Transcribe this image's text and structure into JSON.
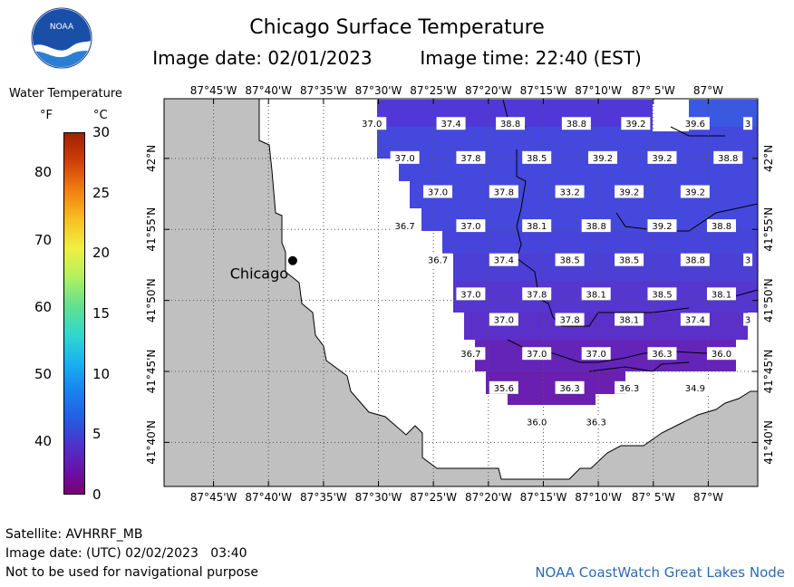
{
  "header": {
    "title": "Chicago Surface Temperature",
    "image_date": "Image date: 02/01/2023",
    "image_time": "Image time: 22:40 (EST)"
  },
  "logo": {
    "text": "NOAA",
    "icon": "noaa-logo-icon"
  },
  "legend": {
    "title": "Water Temperature",
    "unit_f": "°F",
    "unit_c": "°C",
    "f_ticks": [
      "80",
      "70",
      "60",
      "50",
      "40"
    ],
    "f_values": [
      80,
      70,
      60,
      50,
      40
    ],
    "c_ticks": [
      "30",
      "25",
      "20",
      "15",
      "10",
      "5",
      "0"
    ],
    "c_values": [
      30,
      25,
      20,
      15,
      10,
      5,
      0
    ],
    "c_range": [
      0,
      30
    ]
  },
  "map": {
    "lon_labels": [
      "87°45'W",
      "87°40'W",
      "87°35'W",
      "87°30'W",
      "87°25'W",
      "87°20'W",
      "87°15'W",
      "87°10'W",
      "87° 5'W",
      "87°W"
    ],
    "lon_values": [
      -87.75,
      -87.6667,
      -87.5833,
      -87.5,
      -87.4167,
      -87.3333,
      -87.25,
      -87.1667,
      -87.0833,
      -87.0
    ],
    "lat_labels": [
      "42°N",
      "41°55'N",
      "41°50'N",
      "41°45'N",
      "41°40'N"
    ],
    "lat_values": [
      42.0,
      41.9167,
      41.8333,
      41.75,
      41.6667
    ],
    "city": "Chicago",
    "city_lon": -87.63,
    "city_lat": 41.88,
    "temperature_labels": [
      {
        "t": "37.0",
        "lon": -87.51,
        "lat": 42.04
      },
      {
        "t": "37.4",
        "lon": -87.39,
        "lat": 42.04
      },
      {
        "t": "38.8",
        "lon": -87.3,
        "lat": 42.04
      },
      {
        "t": "38.8",
        "lon": -87.2,
        "lat": 42.04
      },
      {
        "t": "39.2",
        "lon": -87.11,
        "lat": 42.04
      },
      {
        "t": "39.6",
        "lon": -87.02,
        "lat": 42.04
      },
      {
        "t": "3",
        "lon": -86.94,
        "lat": 42.04
      },
      {
        "t": "37.0",
        "lon": -87.46,
        "lat": 42.0
      },
      {
        "t": "37.8",
        "lon": -87.36,
        "lat": 42.0
      },
      {
        "t": "38.5",
        "lon": -87.26,
        "lat": 42.0
      },
      {
        "t": "39.2",
        "lon": -87.16,
        "lat": 42.0
      },
      {
        "t": "39.2",
        "lon": -87.07,
        "lat": 42.0
      },
      {
        "t": "38.8",
        "lon": -86.97,
        "lat": 42.0
      },
      {
        "t": "37.0",
        "lon": -87.41,
        "lat": 41.96
      },
      {
        "t": "37.8",
        "lon": -87.31,
        "lat": 41.96
      },
      {
        "t": "33.2",
        "lon": -87.21,
        "lat": 41.96
      },
      {
        "t": "39.2",
        "lon": -87.12,
        "lat": 41.96
      },
      {
        "t": "39.2",
        "lon": -87.02,
        "lat": 41.96
      },
      {
        "t": "36.7",
        "lon": -87.46,
        "lat": 41.92
      },
      {
        "t": "37.0",
        "lon": -87.36,
        "lat": 41.92
      },
      {
        "t": "38.1",
        "lon": -87.26,
        "lat": 41.92
      },
      {
        "t": "38.8",
        "lon": -87.17,
        "lat": 41.92
      },
      {
        "t": "39.2",
        "lon": -87.07,
        "lat": 41.92
      },
      {
        "t": "38.8",
        "lon": -86.98,
        "lat": 41.92
      },
      {
        "t": "36.7",
        "lon": -87.41,
        "lat": 41.88
      },
      {
        "t": "37.4",
        "lon": -87.31,
        "lat": 41.88
      },
      {
        "t": "38.5",
        "lon": -87.21,
        "lat": 41.88
      },
      {
        "t": "38.5",
        "lon": -87.12,
        "lat": 41.88
      },
      {
        "t": "38.8",
        "lon": -87.02,
        "lat": 41.88
      },
      {
        "t": "3",
        "lon": -86.94,
        "lat": 41.88
      },
      {
        "t": "37.0",
        "lon": -87.36,
        "lat": 41.84
      },
      {
        "t": "37.8",
        "lon": -87.26,
        "lat": 41.84
      },
      {
        "t": "38.1",
        "lon": -87.17,
        "lat": 41.84
      },
      {
        "t": "38.5",
        "lon": -87.07,
        "lat": 41.84
      },
      {
        "t": "38.1",
        "lon": -86.98,
        "lat": 41.84
      },
      {
        "t": "37.0",
        "lon": -87.31,
        "lat": 41.81
      },
      {
        "t": "37.8",
        "lon": -87.21,
        "lat": 41.81
      },
      {
        "t": "38.1",
        "lon": -87.12,
        "lat": 41.81
      },
      {
        "t": "37.4",
        "lon": -87.02,
        "lat": 41.81
      },
      {
        "t": "3",
        "lon": -86.94,
        "lat": 41.81
      },
      {
        "t": "36.7",
        "lon": -87.36,
        "lat": 41.77
      },
      {
        "t": "37.0",
        "lon": -87.26,
        "lat": 41.77
      },
      {
        "t": "37.0",
        "lon": -87.17,
        "lat": 41.77
      },
      {
        "t": "36.3",
        "lon": -87.07,
        "lat": 41.77
      },
      {
        "t": "36.0",
        "lon": -86.98,
        "lat": 41.77
      },
      {
        "t": "35.6",
        "lon": -87.31,
        "lat": 41.73
      },
      {
        "t": "36.3",
        "lon": -87.21,
        "lat": 41.73
      },
      {
        "t": "36.3",
        "lon": -87.12,
        "lat": 41.73
      },
      {
        "t": "34.9",
        "lon": -87.02,
        "lat": 41.73
      },
      {
        "t": "36.0",
        "lon": -87.26,
        "lat": 41.69
      },
      {
        "t": "36.3",
        "lon": -87.17,
        "lat": 41.69
      }
    ]
  },
  "footer": {
    "satellite": "Satellite: AVHRRF_MB",
    "utc_date": "Image date: (UTC) 02/02/2023   03:40",
    "disclaimer": "Not to be used for navigational purpose",
    "credit": "NOAA CoastWatch Great Lakes Node"
  },
  "colors": {
    "land": "#c0c0c0",
    "water_cold": "#5a2fd0",
    "water_colder": "#6a1fb0",
    "water_warm": "#2f5be0",
    "credit": "#2b6cb0"
  }
}
